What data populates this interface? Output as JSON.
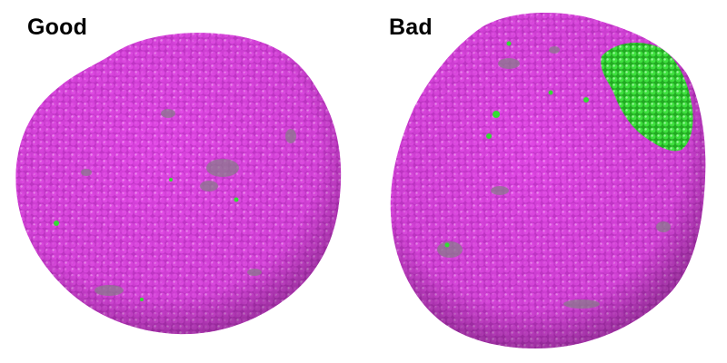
{
  "panels": [
    {
      "label": "Good"
    },
    {
      "label": "Bad"
    }
  ],
  "colors": {
    "surface": "#e040e8",
    "surface_dark": "#b62cbc",
    "grey_patch": "#8a7a8c",
    "green_patch": "#33dd33"
  }
}
